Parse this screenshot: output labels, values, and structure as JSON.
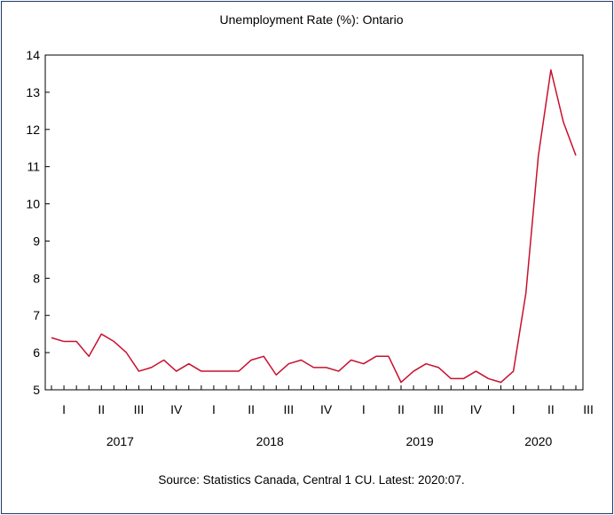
{
  "chart_data": {
    "type": "line",
    "title": "Unemployment Rate (%): Ontario",
    "source_note": "Source: Statistics Canada, Central 1 CU. Latest: 2020:07.",
    "ylim": [
      5,
      14
    ],
    "yticks": [
      "5",
      "6",
      "7",
      "8",
      "9",
      "10",
      "11",
      "12",
      "13",
      "14"
    ],
    "x_start": "2017-01",
    "x_end": "2020-07",
    "quarter_ticks": [
      {
        "label": "I",
        "year": 2017,
        "quarter": 1
      },
      {
        "label": "II",
        "year": 2017,
        "quarter": 2
      },
      {
        "label": "III",
        "year": 2017,
        "quarter": 3
      },
      {
        "label": "IV",
        "year": 2017,
        "quarter": 4
      },
      {
        "label": "I",
        "year": 2018,
        "quarter": 1
      },
      {
        "label": "II",
        "year": 2018,
        "quarter": 2
      },
      {
        "label": "III",
        "year": 2018,
        "quarter": 3
      },
      {
        "label": "IV",
        "year": 2018,
        "quarter": 4
      },
      {
        "label": "I",
        "year": 2019,
        "quarter": 1
      },
      {
        "label": "II",
        "year": 2019,
        "quarter": 2
      },
      {
        "label": "III",
        "year": 2019,
        "quarter": 3
      },
      {
        "label": "IV",
        "year": 2019,
        "quarter": 4
      },
      {
        "label": "I",
        "year": 2020,
        "quarter": 1
      },
      {
        "label": "II",
        "year": 2020,
        "quarter": 2
      },
      {
        "label": "III",
        "year": 2020,
        "quarter": 3
      }
    ],
    "years": [
      "2017",
      "2018",
      "2019",
      "2020"
    ],
    "grid": false,
    "legend": "none",
    "series": [
      {
        "color": "#c8102e",
        "values": [
          6.4,
          6.3,
          6.3,
          5.9,
          6.5,
          6.3,
          6.0,
          5.5,
          5.6,
          5.8,
          5.5,
          5.7,
          5.5,
          5.5,
          5.5,
          5.5,
          5.8,
          5.9,
          5.4,
          5.7,
          5.8,
          5.6,
          5.6,
          5.5,
          5.8,
          5.7,
          5.9,
          5.9,
          5.2,
          5.5,
          5.7,
          5.6,
          5.3,
          5.3,
          5.5,
          5.3,
          5.2,
          5.5,
          7.6,
          11.3,
          13.6,
          12.2,
          11.3
        ]
      }
    ]
  }
}
